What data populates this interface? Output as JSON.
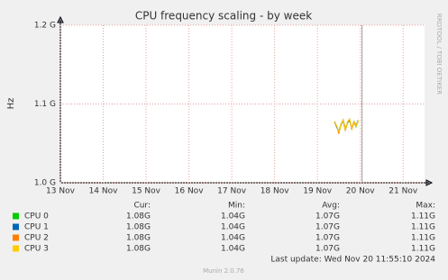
{
  "chart_data": {
    "type": "line",
    "title": "CPU frequency scaling - by week",
    "y_label": "Hz",
    "side_label": "RRDTOOL / TOBI OETIKER",
    "footer": "Munin 2.0.76",
    "last_update": "Last update: Wed Nov 20 11:55:10 2024",
    "x": [
      19.4,
      19.45,
      19.5,
      19.55,
      19.6,
      19.65,
      19.7,
      19.75,
      19.8,
      19.85,
      19.9,
      19.95
    ],
    "series": [
      {
        "name": "CPU 0",
        "color": "#00cc00",
        "values": [
          1.077,
          1.071,
          1.064,
          1.073,
          1.079,
          1.067,
          1.075,
          1.08,
          1.069,
          1.077,
          1.071,
          1.079
        ]
      },
      {
        "name": "CPU 1",
        "color": "#0066b3",
        "values": [
          1.078,
          1.07,
          1.066,
          1.074,
          1.08,
          1.069,
          1.076,
          1.079,
          1.07,
          1.078,
          1.073,
          1.08
        ]
      },
      {
        "name": "CPU 2",
        "color": "#ff8000",
        "values": [
          1.076,
          1.072,
          1.062,
          1.075,
          1.078,
          1.066,
          1.077,
          1.081,
          1.068,
          1.076,
          1.072,
          1.078
        ]
      },
      {
        "name": "CPU 3",
        "color": "#ffcc00",
        "values": [
          1.078,
          1.072,
          1.065,
          1.074,
          1.08,
          1.068,
          1.076,
          1.081,
          1.07,
          1.078,
          1.072,
          1.08
        ]
      }
    ],
    "current_time_x": 20.04,
    "xlim": [
      13,
      21.5
    ],
    "xticks": [
      {
        "value": 13,
        "label": "13 Nov"
      },
      {
        "value": 14,
        "label": "14 Nov"
      },
      {
        "value": 15,
        "label": "15 Nov"
      },
      {
        "value": 16,
        "label": "16 Nov"
      },
      {
        "value": 17,
        "label": "17 Nov"
      },
      {
        "value": 18,
        "label": "18 Nov"
      },
      {
        "value": 19,
        "label": "19 Nov"
      },
      {
        "value": 20,
        "label": "20 Nov"
      },
      {
        "value": 21,
        "label": "21 Nov"
      }
    ],
    "ylim": [
      1.0,
      1.2
    ],
    "yticks": [
      {
        "value": 1.0,
        "label": "1.0 G"
      },
      {
        "value": 1.1,
        "label": "1.1 G"
      },
      {
        "value": 1.2,
        "label": "1.2 G"
      }
    ],
    "grid": true,
    "legend_stats": {
      "headers": [
        "Cur:",
        "Min:",
        "Avg:",
        "Max:"
      ],
      "rows": [
        [
          "1.08G",
          "1.04G",
          "1.07G",
          "1.11G"
        ],
        [
          "1.08G",
          "1.04G",
          "1.07G",
          "1.11G"
        ],
        [
          "1.08G",
          "1.04G",
          "1.07G",
          "1.11G"
        ],
        [
          "1.08G",
          "1.04G",
          "1.07G",
          "1.11G"
        ]
      ]
    }
  }
}
